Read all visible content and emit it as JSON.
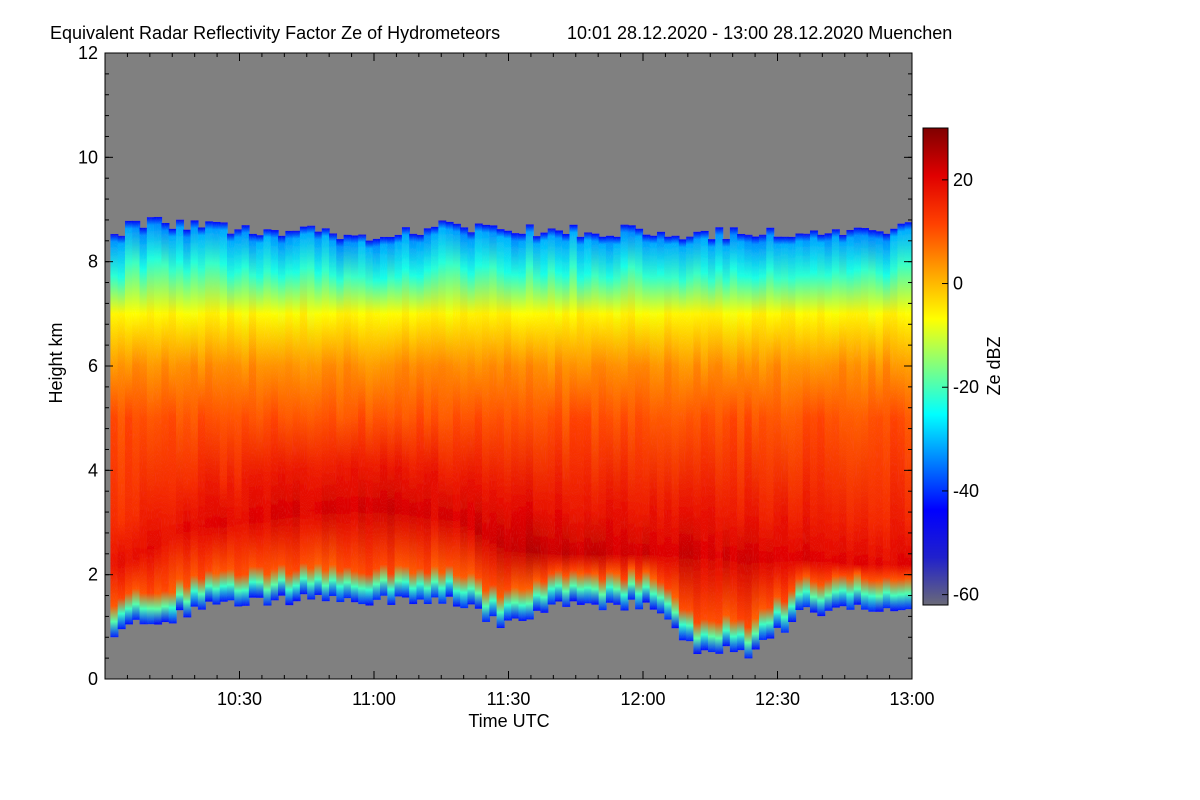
{
  "chart_data": {
    "type": "heatmap",
    "title": "Equivalent Radar Reflectivity Factor Ze of Hydrometeors",
    "subtitle": "10:01 28.12.2020 - 13:00 28.12.2020 Muenchen",
    "xlabel": "Time UTC",
    "ylabel": "Height km",
    "xlim": [
      10.0,
      13.0
    ],
    "ylim": [
      0,
      12
    ],
    "x_ticks": [
      {
        "value": 10.5,
        "label": "10:30"
      },
      {
        "value": 11.0,
        "label": "11:00"
      },
      {
        "value": 11.5,
        "label": "11:30"
      },
      {
        "value": 12.0,
        "label": "12:00"
      },
      {
        "value": 12.5,
        "label": "12:30"
      },
      {
        "value": 13.0,
        "label": "13:00"
      }
    ],
    "y_ticks": [
      {
        "value": 0,
        "label": "0"
      },
      {
        "value": 2,
        "label": "2"
      },
      {
        "value": 4,
        "label": "4"
      },
      {
        "value": 6,
        "label": "6"
      },
      {
        "value": 8,
        "label": "8"
      },
      {
        "value": 10,
        "label": "10"
      },
      {
        "value": 12,
        "label": "12"
      }
    ],
    "colorbar": {
      "label": "Ze dBZ",
      "range": [
        -62,
        30
      ],
      "ticks": [
        {
          "value": 20,
          "label": "20"
        },
        {
          "value": 0,
          "label": "0"
        },
        {
          "value": -20,
          "label": "-20"
        },
        {
          "value": -40,
          "label": "-40"
        },
        {
          "value": -60,
          "label": "-60"
        }
      ]
    },
    "no_data_color": "#808080",
    "colormap": [
      "#6a6a78",
      "#2020cc",
      "#0000ff",
      "#0080ff",
      "#00ffff",
      "#80ff80",
      "#ffff00",
      "#ffa000",
      "#ff4000",
      "#e00000",
      "#800000"
    ],
    "profile": {
      "x": [
        10.02,
        10.1,
        10.2,
        10.3,
        10.5,
        10.7,
        11.0,
        11.3,
        11.5,
        11.7,
        12.0,
        12.2,
        12.4,
        12.6,
        12.8,
        13.0
      ],
      "cloud_top_km": [
        8.5,
        8.7,
        8.8,
        8.7,
        8.6,
        8.6,
        8.5,
        8.7,
        8.6,
        8.6,
        8.6,
        8.5,
        8.6,
        8.6,
        8.6,
        8.7
      ],
      "cloud_base_km": [
        0.7,
        1.2,
        1.0,
        1.3,
        1.5,
        1.5,
        1.5,
        1.5,
        1.0,
        1.4,
        1.4,
        0.6,
        0.5,
        1.3,
        1.3,
        1.3
      ],
      "peak_height_km": [
        2.2,
        2.3,
        2.6,
        2.9,
        3.0,
        3.2,
        3.3,
        3.1,
        2.5,
        2.4,
        2.4,
        2.4,
        2.3,
        2.3,
        2.2,
        2.2
      ],
      "peak_dbz": [
        18,
        19,
        19,
        20,
        20,
        21,
        22,
        21,
        24,
        23,
        22,
        22,
        21,
        21,
        20,
        20
      ]
    }
  }
}
